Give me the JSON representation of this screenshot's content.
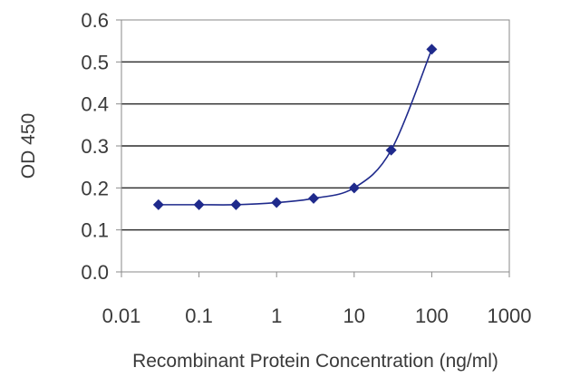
{
  "chart_data": {
    "type": "line",
    "title": "",
    "xlabel": "Recombinant Protein Concentration (ng/ml)",
    "ylabel": "OD 450",
    "x_scale": "log",
    "xlim": [
      0.01,
      1000
    ],
    "ylim": [
      0.0,
      0.6
    ],
    "x_ticks": [
      "0.01",
      "0.1",
      "1",
      "10",
      "100",
      "1000"
    ],
    "y_ticks": [
      "0.0",
      "0.1",
      "0.2",
      "0.3",
      "0.4",
      "0.5",
      "0.6"
    ],
    "grid": "horizontal",
    "legend": "none",
    "series": [
      {
        "color": "#1f2a8c",
        "marker": "diamond",
        "points": [
          {
            "x": 0.03,
            "y": 0.16
          },
          {
            "x": 0.1,
            "y": 0.16
          },
          {
            "x": 0.3,
            "y": 0.16
          },
          {
            "x": 1,
            "y": 0.165
          },
          {
            "x": 3,
            "y": 0.175
          },
          {
            "x": 10,
            "y": 0.2
          },
          {
            "x": 30,
            "y": 0.29
          },
          {
            "x": 100,
            "y": 0.53
          }
        ]
      }
    ]
  }
}
